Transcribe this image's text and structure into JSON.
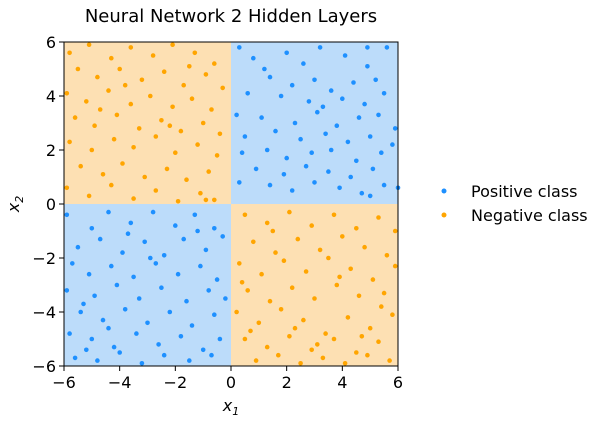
{
  "chart_data": {
    "type": "scatter",
    "title": "Neural Network 2 Hidden Layers",
    "xlabel": "x",
    "xlabel_sub": "1",
    "ylabel": "x",
    "ylabel_sub": "2",
    "xlim": [
      -6,
      6
    ],
    "ylim": [
      -6,
      6
    ],
    "xticks": [
      -6,
      -4,
      -2,
      0,
      2,
      4,
      6
    ],
    "yticks": [
      -6,
      -4,
      -2,
      0,
      2,
      4,
      6
    ],
    "xtick_labels": [
      "−6",
      "−4",
      "−2",
      "0",
      "2",
      "4",
      "6"
    ],
    "ytick_labels": [
      "−6",
      "−4",
      "−2",
      "0",
      "2",
      "4",
      "6"
    ],
    "grid": false,
    "legend_position": "right",
    "colors": {
      "positive_point": "#1e90ff",
      "negative_point": "#ffa500",
      "positive_region": "#bcdcfa",
      "negative_region": "#fde0b3"
    },
    "series": [
      {
        "name": "Positive class",
        "points": [
          [
            0.3,
            5.8
          ],
          [
            0.8,
            5.4
          ],
          [
            1.2,
            5.0
          ],
          [
            2.0,
            5.6
          ],
          [
            2.6,
            5.2
          ],
          [
            3.2,
            5.8
          ],
          [
            4.1,
            5.5
          ],
          [
            4.9,
            5.1
          ],
          [
            5.6,
            5.8
          ],
          [
            1.4,
            4.7
          ],
          [
            2.2,
            4.4
          ],
          [
            3.0,
            4.6
          ],
          [
            3.6,
            4.2
          ],
          [
            4.4,
            4.5
          ],
          [
            5.2,
            4.6
          ],
          [
            0.6,
            4.1
          ],
          [
            1.8,
            4.0
          ],
          [
            2.8,
            3.8
          ],
          [
            3.3,
            3.6
          ],
          [
            4.0,
            3.9
          ],
          [
            4.8,
            3.7
          ],
          [
            5.5,
            4.1
          ],
          [
            0.2,
            3.3
          ],
          [
            1.1,
            3.2
          ],
          [
            2.3,
            3.0
          ],
          [
            3.1,
            3.4
          ],
          [
            3.8,
            2.9
          ],
          [
            4.6,
            3.2
          ],
          [
            5.3,
            3.3
          ],
          [
            5.9,
            2.8
          ],
          [
            0.5,
            2.5
          ],
          [
            1.6,
            2.7
          ],
          [
            2.5,
            2.4
          ],
          [
            3.4,
            2.6
          ],
          [
            4.2,
            2.3
          ],
          [
            5.0,
            2.5
          ],
          [
            0.4,
            1.9
          ],
          [
            1.3,
            2.0
          ],
          [
            2.0,
            1.7
          ],
          [
            2.9,
            1.9
          ],
          [
            3.6,
            2.0
          ],
          [
            4.5,
            1.6
          ],
          [
            5.4,
            1.9
          ],
          [
            0.9,
            1.3
          ],
          [
            1.9,
            1.1
          ],
          [
            2.7,
            1.4
          ],
          [
            3.5,
            1.2
          ],
          [
            4.3,
            1.0
          ],
          [
            5.1,
            1.3
          ],
          [
            0.3,
            0.8
          ],
          [
            1.4,
            0.7
          ],
          [
            2.2,
            0.5
          ],
          [
            3.0,
            0.8
          ],
          [
            3.9,
            0.6
          ],
          [
            4.7,
            0.4
          ],
          [
            5.5,
            0.7
          ],
          [
            6.0,
            0.6
          ],
          [
            5.0,
            0.3
          ],
          [
            5.8,
            2.2
          ],
          [
            4.9,
            5.8
          ],
          [
            -5.9,
            -0.4
          ],
          [
            -5.0,
            -0.9
          ],
          [
            -4.4,
            -0.3
          ],
          [
            -3.6,
            -0.7
          ],
          [
            -2.8,
            -0.3
          ],
          [
            -2.0,
            -0.8
          ],
          [
            -1.3,
            -0.4
          ],
          [
            -0.6,
            -0.9
          ],
          [
            -5.5,
            -1.6
          ],
          [
            -4.7,
            -1.3
          ],
          [
            -3.9,
            -1.8
          ],
          [
            -3.1,
            -1.4
          ],
          [
            -2.4,
            -1.9
          ],
          [
            -1.7,
            -1.3
          ],
          [
            -0.9,
            -1.7
          ],
          [
            -0.3,
            -1.2
          ],
          [
            -5.7,
            -2.2
          ],
          [
            -5.1,
            -2.6
          ],
          [
            -4.3,
            -2.3
          ],
          [
            -3.5,
            -2.7
          ],
          [
            -2.7,
            -2.2
          ],
          [
            -1.9,
            -2.6
          ],
          [
            -1.1,
            -2.3
          ],
          [
            -0.5,
            -2.8
          ],
          [
            -5.9,
            -3.2
          ],
          [
            -4.9,
            -3.4
          ],
          [
            -4.1,
            -3.0
          ],
          [
            -3.3,
            -3.5
          ],
          [
            -2.5,
            -3.1
          ],
          [
            -1.6,
            -3.6
          ],
          [
            -0.8,
            -3.2
          ],
          [
            -5.4,
            -4.0
          ],
          [
            -4.6,
            -4.3
          ],
          [
            -3.8,
            -3.9
          ],
          [
            -3.0,
            -4.4
          ],
          [
            -2.2,
            -4.0
          ],
          [
            -1.4,
            -4.5
          ],
          [
            -0.6,
            -4.1
          ],
          [
            -5.8,
            -4.8
          ],
          [
            -5.0,
            -5.0
          ],
          [
            -4.2,
            -5.3
          ],
          [
            -3.4,
            -4.8
          ],
          [
            -2.6,
            -5.2
          ],
          [
            -1.8,
            -4.9
          ],
          [
            -1.0,
            -5.4
          ],
          [
            -0.4,
            -5.0
          ],
          [
            -5.6,
            -5.7
          ],
          [
            -4.8,
            -5.8
          ],
          [
            -4.0,
            -5.5
          ],
          [
            -3.2,
            -5.9
          ],
          [
            -2.4,
            -5.6
          ],
          [
            -1.5,
            -5.8
          ],
          [
            -0.7,
            -5.6
          ],
          [
            -5.3,
            -3.7
          ],
          [
            -2.9,
            -2.0
          ],
          [
            -1.2,
            -1.0
          ],
          [
            -4.4,
            -4.6
          ],
          [
            -3.7,
            -1.1
          ],
          [
            -0.2,
            -3.5
          ],
          [
            -5.2,
            -5.4
          ]
        ]
      },
      {
        "name": "Negative class",
        "points": [
          [
            -5.8,
            5.6
          ],
          [
            -5.1,
            5.9
          ],
          [
            -4.3,
            5.4
          ],
          [
            -3.6,
            5.8
          ],
          [
            -2.8,
            5.5
          ],
          [
            -2.1,
            5.9
          ],
          [
            -1.3,
            5.6
          ],
          [
            -0.6,
            5.2
          ],
          [
            -5.5,
            5.0
          ],
          [
            -4.8,
            4.7
          ],
          [
            -4.0,
            5.0
          ],
          [
            -3.2,
            4.6
          ],
          [
            -2.4,
            4.9
          ],
          [
            -1.7,
            4.4
          ],
          [
            -0.9,
            4.8
          ],
          [
            -0.3,
            4.3
          ],
          [
            -5.9,
            4.1
          ],
          [
            -5.2,
            3.8
          ],
          [
            -4.4,
            4.2
          ],
          [
            -3.6,
            3.7
          ],
          [
            -2.9,
            4.0
          ],
          [
            -2.1,
            3.6
          ],
          [
            -1.4,
            3.9
          ],
          [
            -0.7,
            3.5
          ],
          [
            -5.6,
            3.2
          ],
          [
            -4.9,
            2.9
          ],
          [
            -4.1,
            3.3
          ],
          [
            -3.3,
            2.8
          ],
          [
            -2.5,
            3.1
          ],
          [
            -1.8,
            2.7
          ],
          [
            -1.0,
            3.0
          ],
          [
            -0.4,
            2.6
          ],
          [
            -5.8,
            2.3
          ],
          [
            -5.0,
            2.0
          ],
          [
            -4.2,
            2.4
          ],
          [
            -3.5,
            2.1
          ],
          [
            -2.7,
            2.5
          ],
          [
            -2.0,
            1.9
          ],
          [
            -1.2,
            2.2
          ],
          [
            -0.5,
            1.8
          ],
          [
            -5.4,
            1.4
          ],
          [
            -4.6,
            1.1
          ],
          [
            -3.9,
            1.5
          ],
          [
            -3.1,
            1.0
          ],
          [
            -2.3,
            1.3
          ],
          [
            -1.6,
            0.9
          ],
          [
            -0.8,
            1.2
          ],
          [
            -5.9,
            0.6
          ],
          [
            -5.1,
            0.3
          ],
          [
            -4.3,
            0.7
          ],
          [
            -3.5,
            0.2
          ],
          [
            -2.7,
            0.5
          ],
          [
            -1.9,
            0.1
          ],
          [
            -1.1,
            0.4
          ],
          [
            -0.6,
            0.15
          ],
          [
            -0.9,
            0.15
          ],
          [
            -3.8,
            4.4
          ],
          [
            -1.5,
            5.1
          ],
          [
            -4.7,
            3.5
          ],
          [
            -2.2,
            2.9
          ],
          [
            0.5,
            -0.4
          ],
          [
            1.3,
            -0.7
          ],
          [
            2.1,
            -0.3
          ],
          [
            2.9,
            -0.8
          ],
          [
            3.7,
            -0.4
          ],
          [
            4.5,
            -0.9
          ],
          [
            5.3,
            -0.5
          ],
          [
            5.9,
            -1.0
          ],
          [
            0.8,
            -1.4
          ],
          [
            1.6,
            -1.8
          ],
          [
            2.4,
            -1.3
          ],
          [
            3.2,
            -1.7
          ],
          [
            4.0,
            -1.2
          ],
          [
            4.8,
            -1.6
          ],
          [
            5.6,
            -1.9
          ],
          [
            0.3,
            -2.2
          ],
          [
            1.1,
            -2.6
          ],
          [
            1.9,
            -2.1
          ],
          [
            2.7,
            -2.5
          ],
          [
            3.5,
            -2.0
          ],
          [
            4.3,
            -2.4
          ],
          [
            5.1,
            -2.8
          ],
          [
            5.9,
            -2.3
          ],
          [
            0.6,
            -3.2
          ],
          [
            1.4,
            -3.6
          ],
          [
            2.2,
            -3.1
          ],
          [
            3.0,
            -3.5
          ],
          [
            3.8,
            -3.0
          ],
          [
            4.6,
            -3.4
          ],
          [
            5.4,
            -3.8
          ],
          [
            0.2,
            -4.0
          ],
          [
            1.0,
            -4.4
          ],
          [
            1.8,
            -3.9
          ],
          [
            2.6,
            -4.3
          ],
          [
            3.4,
            -4.8
          ],
          [
            4.2,
            -4.2
          ],
          [
            5.0,
            -4.6
          ],
          [
            5.8,
            -4.1
          ],
          [
            0.5,
            -5.0
          ],
          [
            1.3,
            -5.3
          ],
          [
            2.1,
            -4.9
          ],
          [
            2.9,
            -5.4
          ],
          [
            3.7,
            -5.0
          ],
          [
            4.5,
            -5.5
          ],
          [
            5.3,
            -5.1
          ],
          [
            0.9,
            -5.8
          ],
          [
            1.7,
            -5.6
          ],
          [
            2.5,
            -5.9
          ],
          [
            3.3,
            -5.7
          ],
          [
            4.1,
            -5.9
          ],
          [
            4.9,
            -5.6
          ],
          [
            5.7,
            -5.8
          ],
          [
            0.4,
            -2.9
          ],
          [
            2.3,
            -4.6
          ],
          [
            3.9,
            -2.7
          ],
          [
            1.5,
            -1.0
          ],
          [
            4.7,
            -4.9
          ],
          [
            5.5,
            -3.3
          ],
          [
            3.1,
            -5.2
          ],
          [
            0.7,
            -4.7
          ]
        ]
      }
    ]
  }
}
